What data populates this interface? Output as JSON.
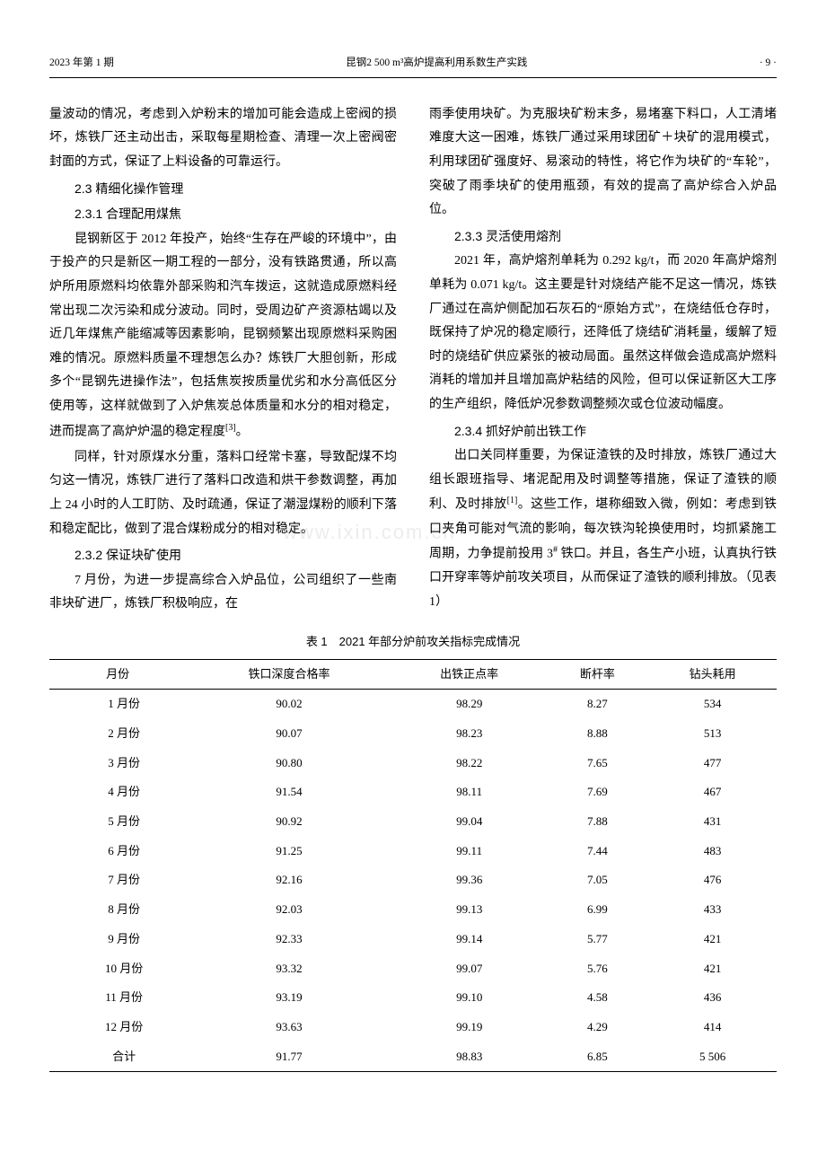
{
  "header": {
    "left": "2023 年第 1 期",
    "center": "昆钢2 500 m³高炉提高利用系数生产实践",
    "right": "· 9 ·"
  },
  "left_col": {
    "p1": "量波动的情况，考虑到入炉粉末的增加可能会造成上密阀的损坏，炼铁厂还主动出击，采取每星期检查、清理一次上密阀密封面的方式，保证了上料设备的可靠运行。",
    "h23": "2.3 精细化操作管理",
    "h231": "2.3.1 合理配用煤焦",
    "p2": "昆钢新区于 2012 年投产，始终“生存在严峻的环境中”，由于投产的只是新区一期工程的一部分，没有铁路贯通，所以高炉所用原燃料均依靠外部采购和汽车拨运，这就造成原燃料经常出现二次污染和成分波动。同时，受周边矿产资源枯竭以及近几年煤焦产能缩减等因素影响，昆钢频繁出现原燃料采购困难的情况。原燃料质量不理想怎么办？炼铁厂大胆创新，形成多个“昆钢先进操作法”，包括焦炭按质量优劣和水分高低区分使用等，这样就做到了入炉焦炭总体质量和水分的相对稳定，进而提高了高炉炉温的稳定程度",
    "p2_ref": "[3]",
    "p2_end": "。",
    "p3": "同样，针对原煤水分重，落料口经常卡塞，导致配煤不均匀这一情况，炼铁厂进行了落料口改造和烘干参数调整，再加上 24 小时的人工盯防、及时疏通，保证了潮湿煤粉的顺利下落和稳定配比，做到了混合煤粉成分的相对稳定。",
    "h232": "2.3.2 保证块矿使用",
    "p4": "7 月份，为进一步提高综合入炉品位，公司组织了一些南非块矿进厂，炼铁厂积极响应，在"
  },
  "right_col": {
    "p1": "雨季使用块矿。为克服块矿粉末多，易堵塞下料口，人工清堵难度大这一困难，炼铁厂通过采用球团矿＋块矿的混用模式，利用球团矿强度好、易滚动的特性，将它作为块矿的“车轮”，突破了雨季块矿的使用瓶颈，有效的提高了高炉综合入炉品位。",
    "h233": "2.3.3 灵活使用熔剂",
    "p2": "2021 年，高炉熔剂单耗为 0.292 kg/t，而 2020 年高炉熔剂单耗为 0.071 kg/t。这主要是针对烧结产能不足这一情况，炼铁厂通过在高炉侧配加石灰石的“原始方式”，在烧结低仓存时，既保持了炉况的稳定顺行，还降低了烧结矿消耗量，缓解了短时的烧结矿供应紧张的被动局面。虽然这样做会造成高炉燃料消耗的增加并且增加高炉粘结的风险，但可以保证新区大工序的生产组织，降低炉况参数调整频次或仓位波动幅度。",
    "h234": "2.3.4 抓好炉前出铁工作",
    "p3a": "出口关同样重要，为保证渣铁的及时排放，炼铁厂通过大组长跟班指导、堵泥配用及时调整等措施，保证了渣铁的顺利、及时排放",
    "p3_ref": "[1]",
    "p3b": "。这些工作，堪称细致入微，例如：考虑到铁口夹角可能对气流的影响，每次铁沟轮换使用时，均抓紧施工周期，力争提前投用 3",
    "p3_sup": "#",
    "p3c": " 铁口。并且，各生产小班，认真执行铁口开穿率等炉前攻关项目，从而保证了渣铁的顺利排放。（见表 1）"
  },
  "table": {
    "caption": "表 1　2021 年部分炉前攻关指标完成情况",
    "columns": [
      "月份",
      "铁口深度合格率",
      "出铁正点率",
      "断杆率",
      "钻头耗用"
    ],
    "rows": [
      [
        "1 月份",
        "90.02",
        "98.29",
        "8.27",
        "534"
      ],
      [
        "2 月份",
        "90.07",
        "98.23",
        "8.88",
        "513"
      ],
      [
        "3 月份",
        "90.80",
        "98.22",
        "7.65",
        "477"
      ],
      [
        "4 月份",
        "91.54",
        "98.11",
        "7.69",
        "467"
      ],
      [
        "5 月份",
        "90.92",
        "99.04",
        "7.88",
        "431"
      ],
      [
        "6 月份",
        "91.25",
        "99.11",
        "7.44",
        "483"
      ],
      [
        "7 月份",
        "92.16",
        "99.36",
        "7.05",
        "476"
      ],
      [
        "8 月份",
        "92.03",
        "99.13",
        "6.99",
        "433"
      ],
      [
        "9 月份",
        "92.33",
        "99.14",
        "5.77",
        "421"
      ],
      [
        "10 月份",
        "93.32",
        "99.07",
        "5.76",
        "421"
      ],
      [
        "11 月份",
        "93.19",
        "99.10",
        "4.58",
        "436"
      ],
      [
        "12 月份",
        "93.63",
        "99.19",
        "4.29",
        "414"
      ],
      [
        "合计",
        "91.77",
        "98.83",
        "6.85",
        "5 506"
      ]
    ]
  },
  "watermark": "www.ixin.com.cn"
}
